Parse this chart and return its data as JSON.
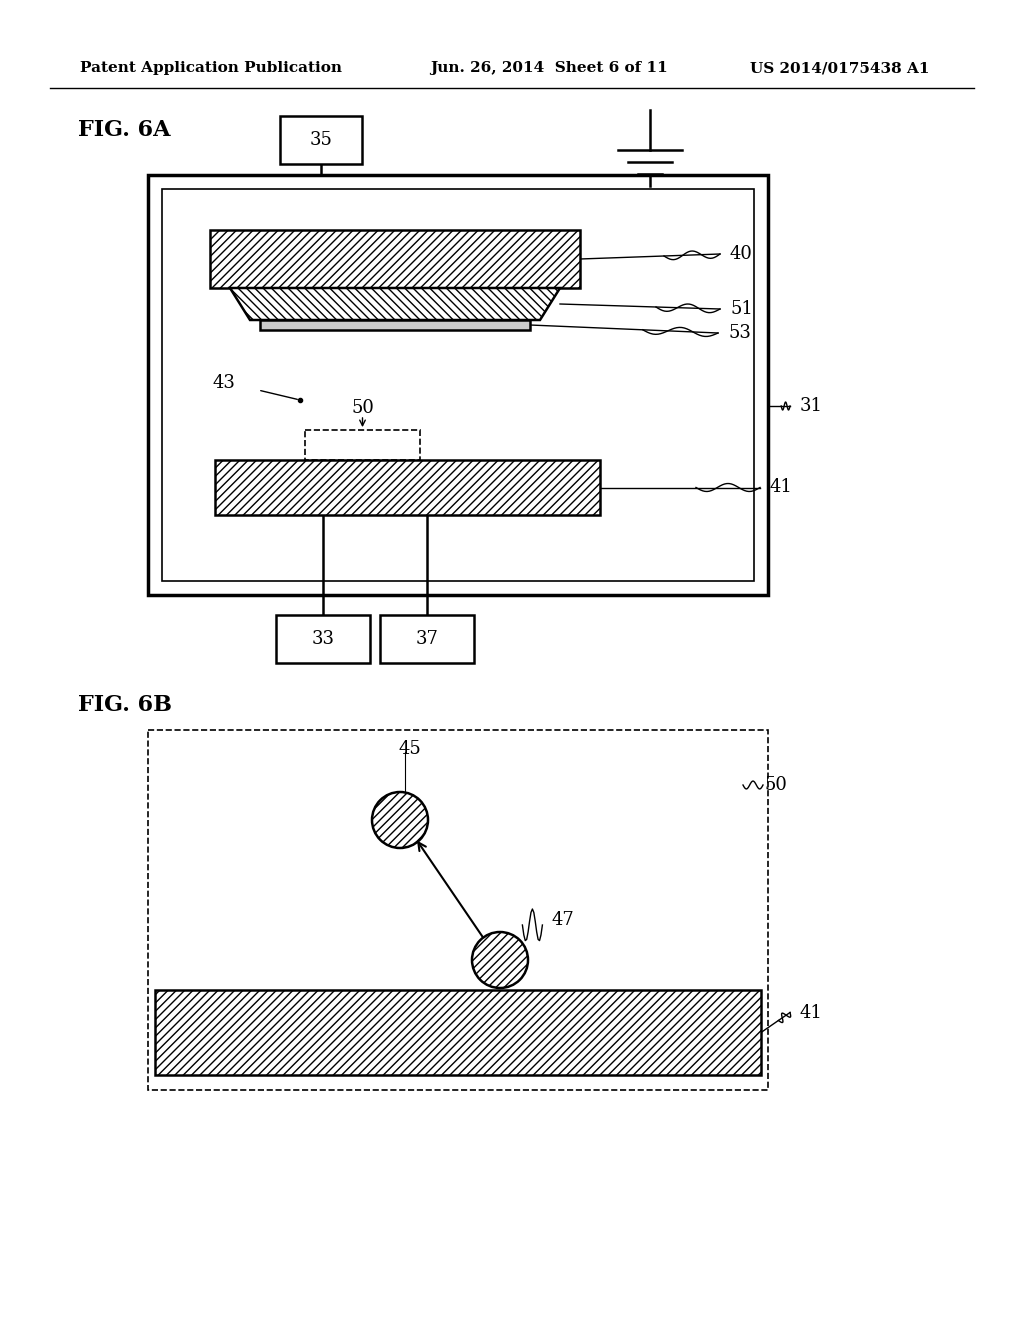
{
  "bg_color": "#ffffff",
  "header_left": "Patent Application Publication",
  "header_mid": "Jun. 26, 2014  Sheet 6 of 11",
  "header_right": "US 2014/0175438 A1",
  "fig6a_label": "FIG. 6A",
  "fig6b_label": "FIG. 6B"
}
